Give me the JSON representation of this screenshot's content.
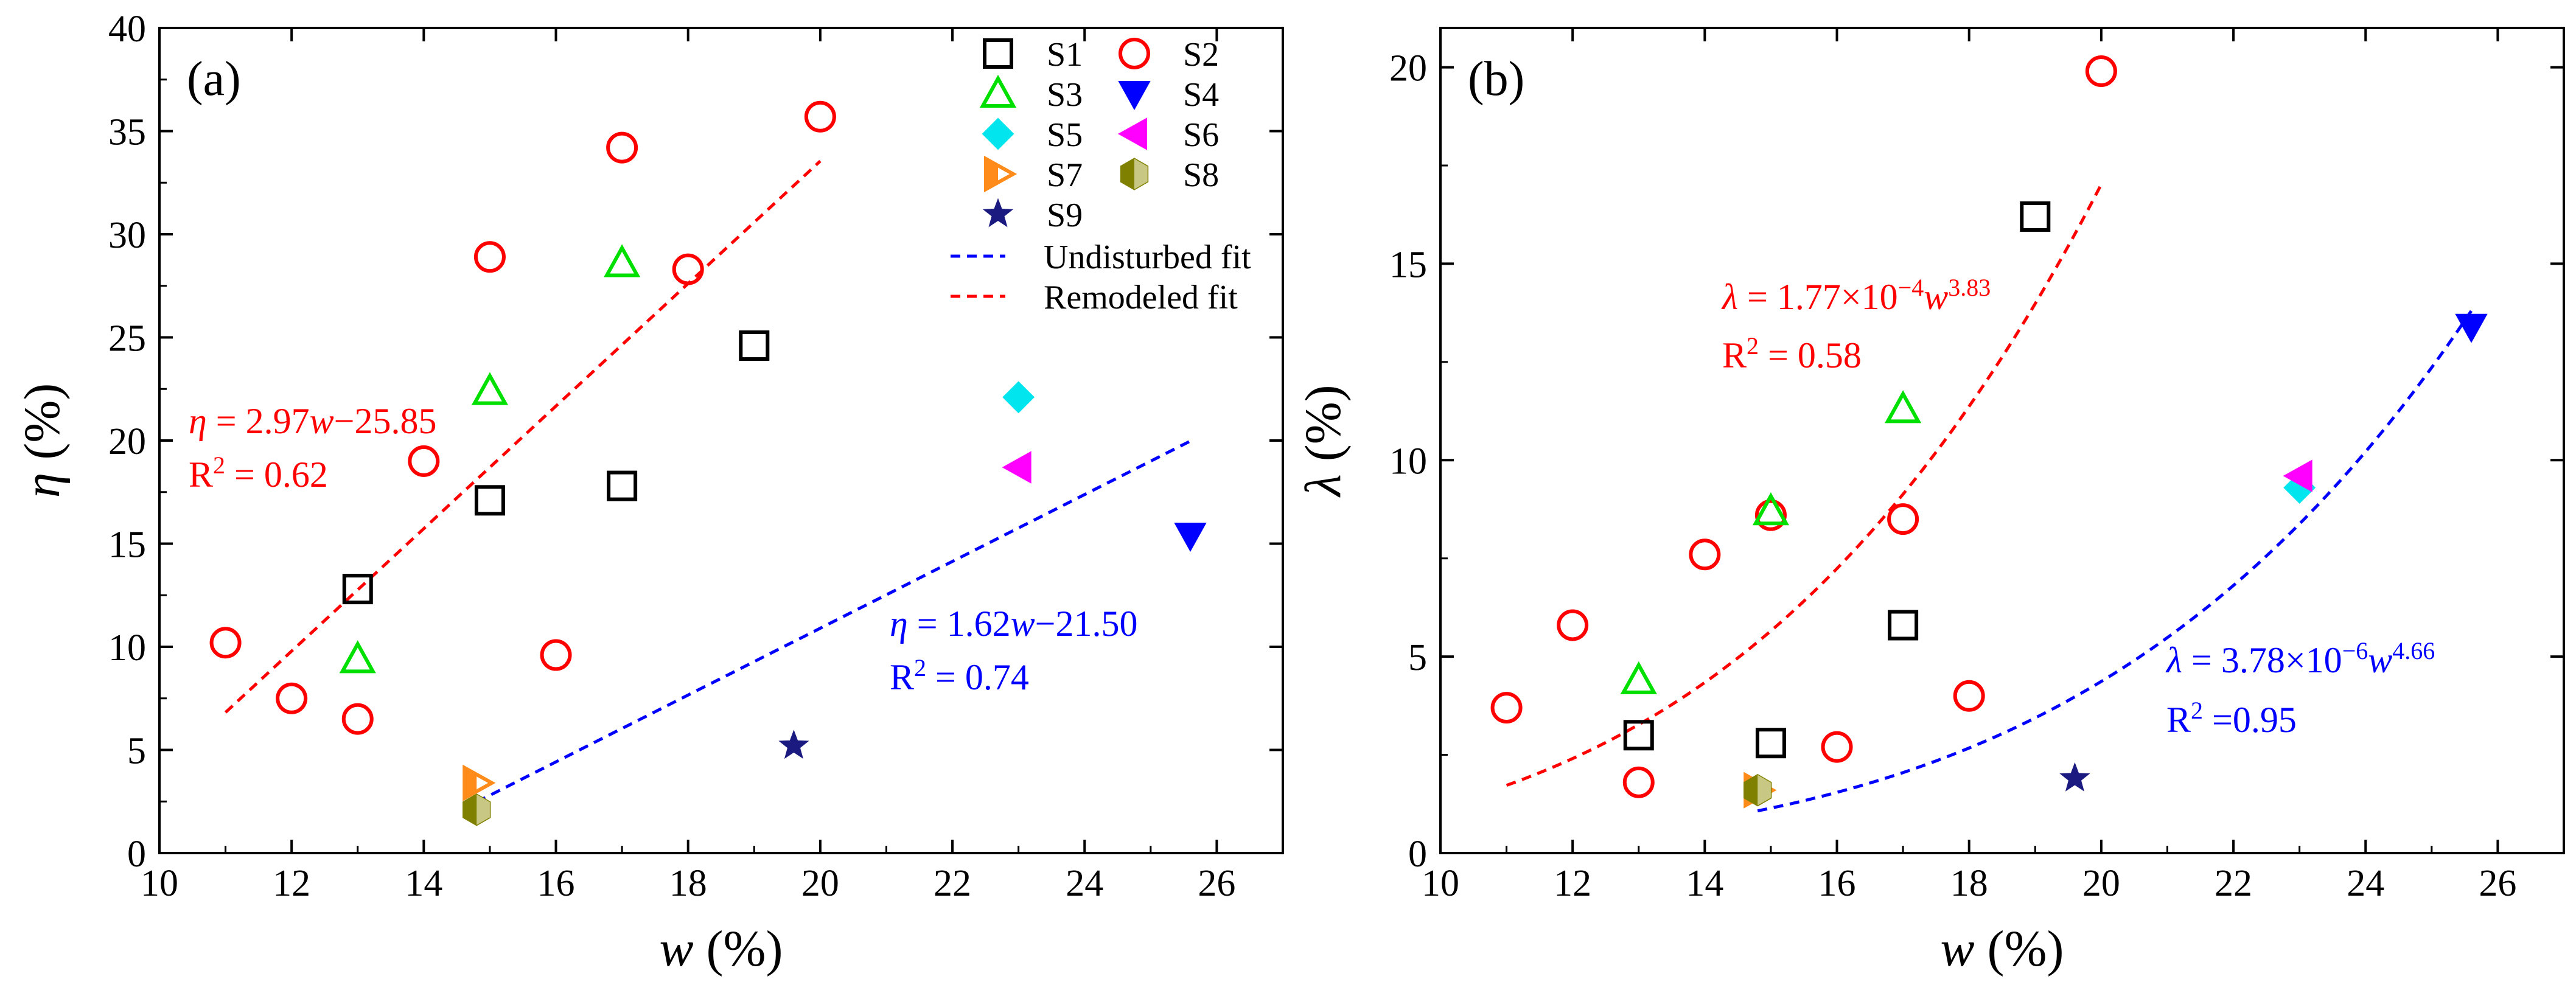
{
  "chart_data": [
    {
      "type": "scatter",
      "panel_label": "(a)",
      "xlabel": {
        "italic": "w",
        "unit": " (%)"
      },
      "ylabel": {
        "italic": "η",
        "unit": " (%)"
      },
      "xlim": [
        10,
        27
      ],
      "ylim": [
        0,
        40
      ],
      "xticks": [
        10,
        12,
        14,
        16,
        18,
        20,
        22,
        24,
        26
      ],
      "yticks": [
        0,
        5,
        10,
        15,
        20,
        25,
        30,
        35,
        40
      ],
      "series": [
        {
          "name": "S1",
          "marker": "square",
          "color": "#000000",
          "points": [
            [
              13,
              12.8
            ],
            [
              15,
              17.1
            ],
            [
              17,
              17.8
            ],
            [
              19,
              24.6
            ]
          ]
        },
        {
          "name": "S2",
          "marker": "circle",
          "color": "#ff0000",
          "points": [
            [
              11,
              10.2
            ],
            [
              12,
              7.5
            ],
            [
              13,
              6.5
            ],
            [
              14,
              19.0
            ],
            [
              15,
              28.9
            ],
            [
              16,
              9.6
            ],
            [
              17,
              34.2
            ],
            [
              18,
              28.3
            ],
            [
              20,
              35.7
            ]
          ]
        },
        {
          "name": "S3",
          "marker": "triangle-up",
          "color": "#00e000",
          "points": [
            [
              13,
              9.4
            ],
            [
              15,
              22.4
            ],
            [
              17,
              28.6
            ]
          ]
        },
        {
          "name": "S4",
          "marker": "triangle-down",
          "color": "#0000ff",
          "points": [
            [
              25.6,
              15.4
            ]
          ]
        },
        {
          "name": "S5",
          "marker": "diamond",
          "color": "#00e5ee",
          "points": [
            [
              23.0,
              22.1
            ]
          ]
        },
        {
          "name": "S6",
          "marker": "triangle-left",
          "color": "#ff00ff",
          "points": [
            [
              23.0,
              18.7
            ]
          ]
        },
        {
          "name": "S7",
          "marker": "triangle-right",
          "color": "#ff8c1a",
          "points": [
            [
              14.8,
              3.4
            ]
          ]
        },
        {
          "name": "S8",
          "marker": "hexagon",
          "color": "#808000",
          "points": [
            [
              14.8,
              2.1
            ]
          ]
        },
        {
          "name": "S9",
          "marker": "star",
          "color": "#1a1a80",
          "points": [
            [
              19.6,
              5.2
            ]
          ]
        }
      ],
      "fits": [
        {
          "name": "Undisturbed fit",
          "color": "#0000ff",
          "kind": "linear",
          "a": 1.62,
          "b": -21.5,
          "x_range": [
            14.8,
            25.6
          ],
          "eq_lhs": "η",
          "eq_rhs": " = 1.62",
          "eq_w": "w",
          "eq_tail": "−21.50",
          "r2_label": "R",
          "r2_exp": "2",
          "r2_value": " = 0.74"
        },
        {
          "name": "Remodeled fit",
          "color": "#ff0000",
          "kind": "linear",
          "a": 2.97,
          "b": -25.85,
          "x_range": [
            11,
            20
          ],
          "eq_lhs": "η",
          "eq_rhs": " = 2.97",
          "eq_w": "w",
          "eq_tail": "−25.85",
          "r2_label": "R",
          "r2_exp": "2",
          "r2_value": " = 0.62"
        }
      ]
    },
    {
      "type": "scatter",
      "panel_label": "(b)",
      "xlabel": {
        "italic": "w",
        "unit": " (%)"
      },
      "ylabel": {
        "italic": "λ",
        "unit": " (%)"
      },
      "xlim": [
        10,
        27
      ],
      "ylim": [
        0,
        21
      ],
      "xticks": [
        10,
        12,
        14,
        16,
        18,
        20,
        22,
        24,
        26
      ],
      "yticks": [
        0,
        5,
        10,
        15,
        20
      ],
      "series": [
        {
          "name": "S1",
          "marker": "square",
          "color": "#000000",
          "points": [
            [
              13,
              3.0
            ],
            [
              15,
              2.8
            ],
            [
              17,
              5.8
            ],
            [
              19,
              16.2
            ]
          ]
        },
        {
          "name": "S2",
          "marker": "circle",
          "color": "#ff0000",
          "points": [
            [
              11,
              3.7
            ],
            [
              12,
              5.8
            ],
            [
              13,
              1.8
            ],
            [
              14,
              7.6
            ],
            [
              15,
              8.6
            ],
            [
              16,
              2.7
            ],
            [
              17,
              8.5
            ],
            [
              18,
              4.0
            ],
            [
              20,
              19.9
            ]
          ]
        },
        {
          "name": "S3",
          "marker": "triangle-up",
          "color": "#00e000",
          "points": [
            [
              13,
              4.4
            ],
            [
              15,
              8.7
            ],
            [
              17,
              11.3
            ]
          ]
        },
        {
          "name": "S4",
          "marker": "triangle-down",
          "color": "#0000ff",
          "points": [
            [
              25.6,
              13.4
            ]
          ]
        },
        {
          "name": "S5",
          "marker": "diamond",
          "color": "#00e5ee",
          "points": [
            [
              23.0,
              9.3
            ]
          ]
        },
        {
          "name": "S6",
          "marker": "triangle-left",
          "color": "#ff00ff",
          "points": [
            [
              23.0,
              9.6
            ]
          ]
        },
        {
          "name": "S7",
          "marker": "triangle-right",
          "color": "#ff8c1a",
          "points": [
            [
              14.8,
              1.6
            ]
          ]
        },
        {
          "name": "S8",
          "marker": "hexagon",
          "color": "#808000",
          "points": [
            [
              14.8,
              1.6
            ]
          ]
        },
        {
          "name": "S9",
          "marker": "star",
          "color": "#1a1a80",
          "points": [
            [
              19.6,
              1.9
            ]
          ]
        }
      ],
      "fits": [
        {
          "name": "Undisturbed fit",
          "color": "#0000ff",
          "kind": "power",
          "a": 3.78e-06,
          "b": 4.66,
          "x_range": [
            14.8,
            25.6
          ],
          "eq_lhs": "λ",
          "eq_rhs": " = 3.78×10",
          "eq_exp": "−6",
          "eq_w": "w",
          "eq_wexp": "4.66",
          "r2_label": "R",
          "r2_exp": "2",
          "r2_value": " =0.95"
        },
        {
          "name": "Remodeled fit",
          "color": "#ff0000",
          "kind": "power",
          "a": 0.000177,
          "b": 3.83,
          "x_range": [
            11,
            20
          ],
          "eq_lhs": "λ",
          "eq_rhs": " = 1.77×10",
          "eq_exp": "−4",
          "eq_w": "w",
          "eq_wexp": "3.83",
          "r2_label": "R",
          "r2_exp": "2",
          "r2_value": " = 0.58"
        }
      ]
    }
  ],
  "legend": {
    "entries": [
      {
        "name": "S1",
        "marker": "square",
        "color": "#000000"
      },
      {
        "name": "S2",
        "marker": "circle",
        "color": "#ff0000"
      },
      {
        "name": "S3",
        "marker": "triangle-up",
        "color": "#00e000"
      },
      {
        "name": "S4",
        "marker": "triangle-down",
        "color": "#0000ff"
      },
      {
        "name": "S5",
        "marker": "diamond",
        "color": "#00e5ee"
      },
      {
        "name": "S6",
        "marker": "triangle-left",
        "color": "#ff00ff"
      },
      {
        "name": "S7",
        "marker": "triangle-right",
        "color": "#ff8c1a"
      },
      {
        "name": "S8",
        "marker": "hexagon",
        "color": "#808000"
      },
      {
        "name": "S9",
        "marker": "star",
        "color": "#1a1a80"
      }
    ],
    "fit_entries": [
      {
        "name": "Undisturbed fit",
        "color": "#0000ff"
      },
      {
        "name": "Remodeled fit",
        "color": "#ff0000"
      }
    ]
  }
}
